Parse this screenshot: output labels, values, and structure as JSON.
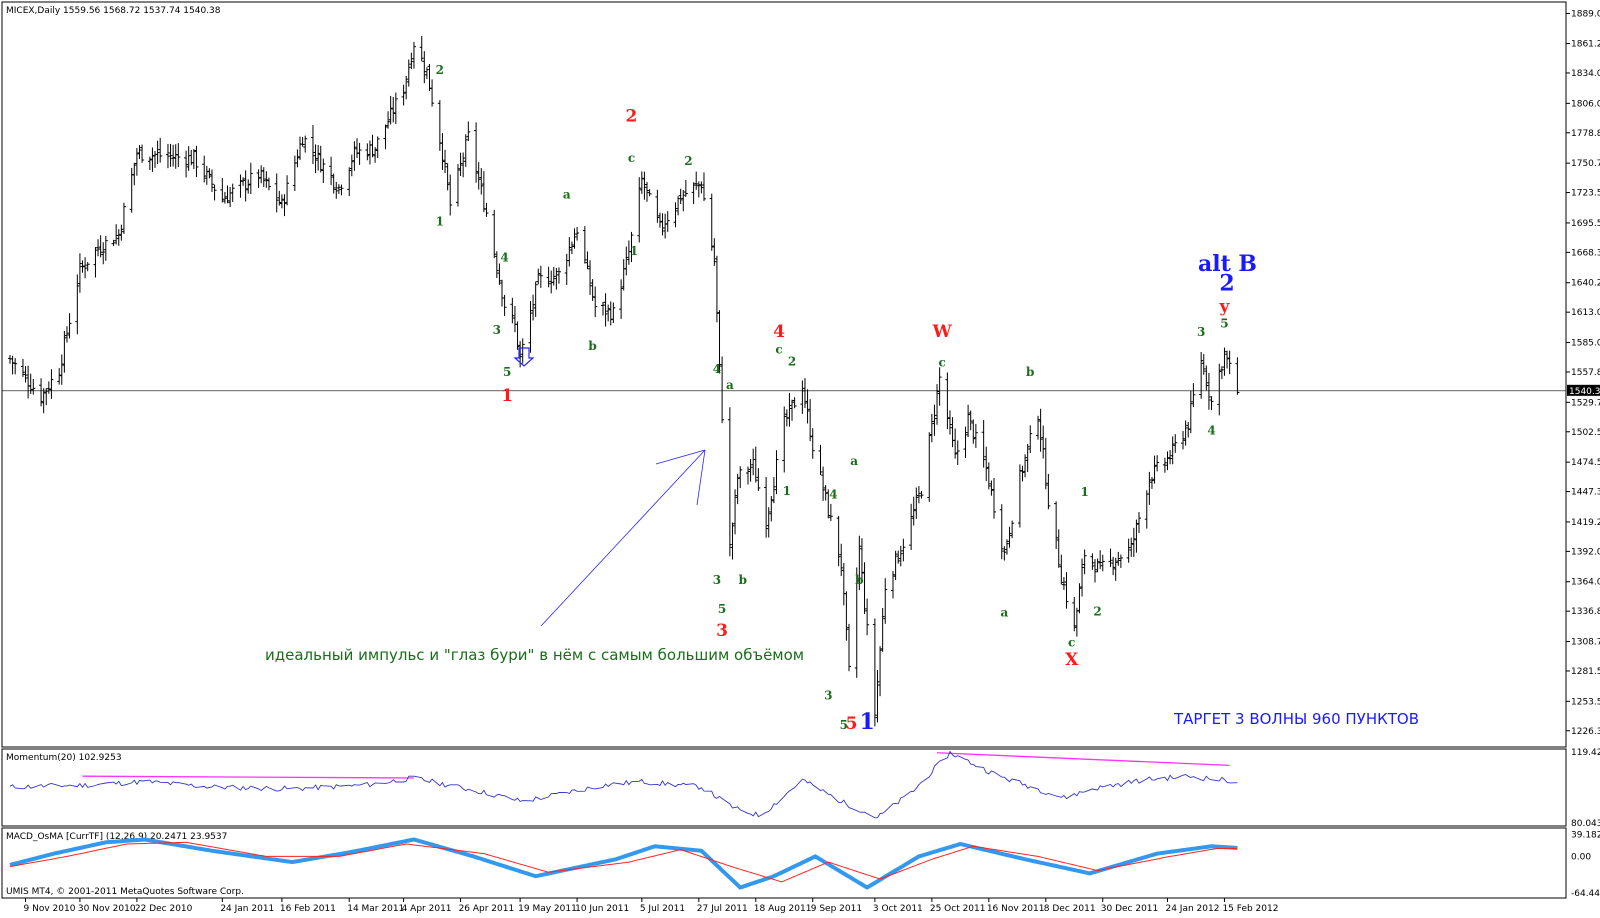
{
  "window": {
    "symbol_header": "MICEX,Daily  1559.56 1568.72 1537.74 1540.38",
    "copyright": "UMIS MT4, © 2001-2011 MetaQuotes Software Corp.",
    "current_price_label": "1540.38"
  },
  "panels": {
    "momentum_header": "Momentum(20) 102.9253",
    "macd_header": "MACD_OsMA [CurrTF] (12,26,9) 20.2471 23.9537"
  },
  "annotations": {
    "main_note": "идеальный импульс и \"глаз бури\" в нём с самым большим объёмом",
    "target_note": "ТАРГЕТ 3 ВОЛНЫ 960 ПУНКТОВ",
    "alt_b": "alt B",
    "waves": [
      {
        "text": "2",
        "style": "sm",
        "date": "2011-04-18",
        "price": 1833
      },
      {
        "text": "1",
        "style": "sm",
        "date": "2011-04-18",
        "price": 1693
      },
      {
        "text": "4",
        "style": "sm",
        "date": "2011-05-13",
        "price": 1660
      },
      {
        "text": "3",
        "style": "sm",
        "date": "2011-05-10",
        "price": 1593
      },
      {
        "text": "5",
        "style": "sm",
        "date": "2011-05-14",
        "price": 1554
      },
      {
        "text": "1",
        "style": "red",
        "date": "2011-05-14",
        "price": 1531
      },
      {
        "text": "a",
        "style": "sm",
        "date": "2011-06-06",
        "price": 1718
      },
      {
        "text": "b",
        "style": "sm",
        "date": "2011-06-16",
        "price": 1578
      },
      {
        "text": "2",
        "style": "red",
        "date": "2011-07-01",
        "price": 1789
      },
      {
        "text": "c",
        "style": "sm",
        "date": "2011-07-01",
        "price": 1752
      },
      {
        "text": "1",
        "style": "sm",
        "date": "2011-07-02",
        "price": 1666
      },
      {
        "text": "2",
        "style": "sm",
        "date": "2011-07-23",
        "price": 1749
      },
      {
        "text": "4",
        "style": "sm",
        "date": "2011-08-03",
        "price": 1557
      },
      {
        "text": "a",
        "style": "sm",
        "date": "2011-08-08",
        "price": 1542
      },
      {
        "text": "3",
        "style": "sm",
        "date": "2011-08-03",
        "price": 1362
      },
      {
        "text": "b",
        "style": "sm",
        "date": "2011-08-13",
        "price": 1362
      },
      {
        "text": "5",
        "style": "sm",
        "date": "2011-08-05",
        "price": 1335
      },
      {
        "text": "3",
        "style": "red",
        "date": "2011-08-05",
        "price": 1314
      },
      {
        "text": "4",
        "style": "red",
        "date": "2011-08-27",
        "price": 1590
      },
      {
        "text": "c",
        "style": "sm",
        "date": "2011-08-27",
        "price": 1575
      },
      {
        "text": "2",
        "style": "sm",
        "date": "2011-09-01",
        "price": 1564
      },
      {
        "text": "1",
        "style": "sm",
        "date": "2011-08-30",
        "price": 1444
      },
      {
        "text": "4",
        "style": "sm",
        "date": "2011-09-17",
        "price": 1441
      },
      {
        "text": "b",
        "style": "sm",
        "date": "2011-09-27",
        "price": 1362
      },
      {
        "text": "3",
        "style": "sm",
        "date": "2011-09-15",
        "price": 1255
      },
      {
        "text": "a",
        "style": "sm",
        "date": "2011-09-25",
        "price": 1472
      },
      {
        "text": "5",
        "style": "sm",
        "date": "2011-09-21",
        "price": 1228
      },
      {
        "text": "5",
        "style": "red",
        "date": "2011-09-24",
        "price": 1228
      },
      {
        "text": "1",
        "style": "blue",
        "date": "2011-09-30",
        "price": 1228
      },
      {
        "text": "W",
        "style": "red",
        "date": "2011-10-29",
        "price": 1590
      },
      {
        "text": "c",
        "style": "sm",
        "date": "2011-10-29",
        "price": 1563
      },
      {
        "text": "b",
        "style": "sm",
        "date": "2011-12-02",
        "price": 1554
      },
      {
        "text": "a",
        "style": "sm",
        "date": "2011-11-22",
        "price": 1332
      },
      {
        "text": "1",
        "style": "sm",
        "date": "2011-12-23",
        "price": 1443
      },
      {
        "text": "c",
        "style": "sm",
        "date": "2011-12-18",
        "price": 1304
      },
      {
        "text": "X",
        "style": "red",
        "date": "2011-12-18",
        "price": 1287
      },
      {
        "text": "2",
        "style": "sm",
        "date": "2011-12-28",
        "price": 1333
      },
      {
        "text": "3",
        "style": "sm",
        "date": "2012-02-06",
        "price": 1591
      },
      {
        "text": "4",
        "style": "sm",
        "date": "2012-02-10",
        "price": 1500
      },
      {
        "text": "5",
        "style": "sm",
        "date": "2012-02-15",
        "price": 1599
      },
      {
        "text": "y",
        "style": "red",
        "date": "2012-02-15",
        "price": 1613
      },
      {
        "text": "2",
        "style": "blue",
        "date": "2012-02-16",
        "price": 1633
      }
    ]
  },
  "colors": {
    "bars": "#000000",
    "momentum_line": "#3333cc",
    "momentum_trend": "#ff33ff",
    "macd_main": "#3399ee",
    "macd_signal": "#ff2222",
    "arrow": "#2222ff",
    "wave_green": "#1a6e1a",
    "wave_red": "#ff1a1a",
    "wave_blue": "#1a1aff"
  },
  "chart_data": {
    "type": "bar",
    "title": "MICEX,Daily",
    "timeframe": "Daily",
    "last_bar": {
      "open": 1559.56,
      "high": 1568.72,
      "low": 1537.74,
      "close": 1540.38
    },
    "ylim": [
      1215,
      1895
    ],
    "y_ticks": [
      "1889.00",
      "1861.25",
      "1834.05",
      "1806.00",
      "1778.80",
      "1750.75",
      "1723.55",
      "1695.50",
      "1668.30",
      "1640.25",
      "1613.05",
      "1585.00",
      "1557.80",
      "1529.75",
      "1502.55",
      "1474.50",
      "1447.30",
      "1419.25",
      "1392.05",
      "1364.00",
      "1336.80",
      "1308.75",
      "1281.55",
      "1253.50",
      "1226.30"
    ],
    "x_ticks": [
      "9 Nov 2010",
      "30 Nov 2010",
      "22 Dec 2010",
      "24 Jan 2011",
      "16 Feb 2011",
      "14 Mar 2011",
      "4 Apr 2011",
      "26 Apr 2011",
      "19 May 2011",
      "10 Jun 2011",
      "5 Jul 2011",
      "27 Jul 2011",
      "18 Aug 2011",
      "9 Sep 2011",
      "3 Oct 2011",
      "25 Oct 2011",
      "16 Nov 2011",
      "8 Dec 2011",
      "30 Dec 2011",
      "24 Jan 2012",
      "15 Feb 2012"
    ],
    "price_path": [
      [
        "2010-11-03",
        1570
      ],
      [
        "2010-11-15",
        1535
      ],
      [
        "2010-11-22",
        1560
      ],
      [
        "2010-11-30",
        1652
      ],
      [
        "2010-12-07",
        1672
      ],
      [
        "2010-12-15",
        1685
      ],
      [
        "2010-12-22",
        1760
      ],
      [
        "2011-01-13",
        1755
      ],
      [
        "2011-01-24",
        1718
      ],
      [
        "2011-02-07",
        1740
      ],
      [
        "2011-02-16",
        1712
      ],
      [
        "2011-02-24",
        1775
      ],
      [
        "2011-03-10",
        1728
      ],
      [
        "2011-03-16",
        1760
      ],
      [
        "2011-03-24",
        1765
      ],
      [
        "2011-04-04",
        1820
      ],
      [
        "2011-04-08",
        1862
      ],
      [
        "2011-04-13",
        1835
      ],
      [
        "2011-04-19",
        1760
      ],
      [
        "2011-04-22",
        1712
      ],
      [
        "2011-04-29",
        1775
      ],
      [
        "2011-05-06",
        1705
      ],
      [
        "2011-05-13",
        1620
      ],
      [
        "2011-05-17",
        1600
      ],
      [
        "2011-05-19",
        1570
      ],
      [
        "2011-05-26",
        1642
      ],
      [
        "2011-06-03",
        1648
      ],
      [
        "2011-06-10",
        1690
      ],
      [
        "2011-06-17",
        1618
      ],
      [
        "2011-06-24",
        1612
      ],
      [
        "2011-06-30",
        1668
      ],
      [
        "2011-07-05",
        1735
      ],
      [
        "2011-07-12",
        1690
      ],
      [
        "2011-07-20",
        1720
      ],
      [
        "2011-07-28",
        1732
      ],
      [
        "2011-08-02",
        1660
      ],
      [
        "2011-08-04",
        1560
      ],
      [
        "2011-08-08",
        1395
      ],
      [
        "2011-08-11",
        1460
      ],
      [
        "2011-08-17",
        1472
      ],
      [
        "2011-08-22",
        1420
      ],
      [
        "2011-08-29",
        1510
      ],
      [
        "2011-09-05",
        1545
      ],
      [
        "2011-09-09",
        1490
      ],
      [
        "2011-09-14",
        1440
      ],
      [
        "2011-09-20",
        1380
      ],
      [
        "2011-09-23",
        1280
      ],
      [
        "2011-09-27",
        1395
      ],
      [
        "2011-10-03",
        1242
      ],
      [
        "2011-10-07",
        1360
      ],
      [
        "2011-10-14",
        1400
      ],
      [
        "2011-10-21",
        1450
      ],
      [
        "2011-10-28",
        1552
      ],
      [
        "2011-11-03",
        1478
      ],
      [
        "2011-11-08",
        1515
      ],
      [
        "2011-11-15",
        1468
      ],
      [
        "2011-11-22",
        1390
      ],
      [
        "2011-11-28",
        1460
      ],
      [
        "2011-12-05",
        1520
      ],
      [
        "2011-12-09",
        1440
      ],
      [
        "2011-12-14",
        1370
      ],
      [
        "2011-12-19",
        1320
      ],
      [
        "2011-12-23",
        1390
      ],
      [
        "2011-12-29",
        1375
      ],
      [
        "2012-01-10",
        1395
      ],
      [
        "2012-01-17",
        1460
      ],
      [
        "2012-01-25",
        1480
      ],
      [
        "2012-02-01",
        1510
      ],
      [
        "2012-02-06",
        1570
      ],
      [
        "2012-02-10",
        1530
      ],
      [
        "2012-02-15",
        1575
      ],
      [
        "2012-02-20",
        1540
      ]
    ],
    "momentum": {
      "name": "Momentum(20)",
      "value": 102.9253,
      "ylim": [
        80.0431,
        119.4233
      ],
      "y_ticks": [
        "119.4233",
        "80.0431"
      ],
      "path": [
        [
          "2010-11-03",
          100
        ],
        [
          "2010-12-01",
          101
        ],
        [
          "2010-12-25",
          103
        ],
        [
          "2011-01-20",
          100
        ],
        [
          "2011-02-20",
          99
        ],
        [
          "2011-03-20",
          101
        ],
        [
          "2011-04-08",
          105
        ],
        [
          "2011-05-05",
          97
        ],
        [
          "2011-05-20",
          92
        ],
        [
          "2011-06-20",
          101
        ],
        [
          "2011-07-05",
          103
        ],
        [
          "2011-07-28",
          100
        ],
        [
          "2011-08-10",
          88
        ],
        [
          "2011-08-20",
          84
        ],
        [
          "2011-09-05",
          104
        ],
        [
          "2011-09-20",
          92
        ],
        [
          "2011-10-04",
          83
        ],
        [
          "2011-10-18",
          98
        ],
        [
          "2011-11-01",
          119
        ],
        [
          "2011-11-20",
          106
        ],
        [
          "2011-12-15",
          94
        ],
        [
          "2011-12-26",
          99
        ],
        [
          "2012-01-15",
          104
        ],
        [
          "2012-02-01",
          106
        ],
        [
          "2012-02-20",
          103
        ]
      ],
      "trendlines": [
        [
          [
            "2010-12-01",
            106
          ],
          [
            "2011-04-08",
            105
          ]
        ],
        [
          [
            "2011-10-27",
            119
          ],
          [
            "2012-02-17",
            112
          ]
        ]
      ]
    },
    "macd": {
      "name": "MACD_OsMA",
      "params": "(12,26,9)",
      "values": [
        20.2471,
        23.9537
      ],
      "ylim": [
        -70,
        45
      ],
      "y_ticks": [
        "39.1823",
        "0.00",
        "-64.4428"
      ],
      "main": [
        [
          "2010-11-03",
          -15
        ],
        [
          "2010-11-20",
          5
        ],
        [
          "2010-12-10",
          25
        ],
        [
          "2010-12-25",
          30
        ],
        [
          "2011-01-20",
          10
        ],
        [
          "2011-02-20",
          -10
        ],
        [
          "2011-03-15",
          8
        ],
        [
          "2011-04-08",
          30
        ],
        [
          "2011-05-01",
          0
        ],
        [
          "2011-05-25",
          -35
        ],
        [
          "2011-06-25",
          -5
        ],
        [
          "2011-07-10",
          18
        ],
        [
          "2011-07-28",
          10
        ],
        [
          "2011-08-12",
          -55
        ],
        [
          "2011-08-25",
          -35
        ],
        [
          "2011-09-10",
          0
        ],
        [
          "2011-09-30",
          -55
        ],
        [
          "2011-10-20",
          0
        ],
        [
          "2011-11-05",
          22
        ],
        [
          "2011-11-30",
          -5
        ],
        [
          "2011-12-25",
          -30
        ],
        [
          "2012-01-20",
          5
        ],
        [
          "2012-02-10",
          18
        ],
        [
          "2012-02-20",
          15
        ]
      ],
      "signal": [
        [
          "2010-11-03",
          -18
        ],
        [
          "2010-11-25",
          0
        ],
        [
          "2010-12-18",
          22
        ],
        [
          "2011-01-10",
          25
        ],
        [
          "2011-02-10",
          0
        ],
        [
          "2011-03-10",
          0
        ],
        [
          "2011-04-05",
          22
        ],
        [
          "2011-05-05",
          5
        ],
        [
          "2011-05-30",
          -28
        ],
        [
          "2011-06-30",
          -10
        ],
        [
          "2011-07-20",
          12
        ],
        [
          "2011-08-10",
          -20
        ],
        [
          "2011-08-28",
          -45
        ],
        [
          "2011-09-15",
          -10
        ],
        [
          "2011-10-05",
          -40
        ],
        [
          "2011-10-25",
          -5
        ],
        [
          "2011-11-10",
          18
        ],
        [
          "2011-12-05",
          0
        ],
        [
          "2011-12-28",
          -25
        ],
        [
          "2012-01-25",
          0
        ],
        [
          "2012-02-12",
          14
        ],
        [
          "2012-02-20",
          14
        ]
      ]
    }
  }
}
